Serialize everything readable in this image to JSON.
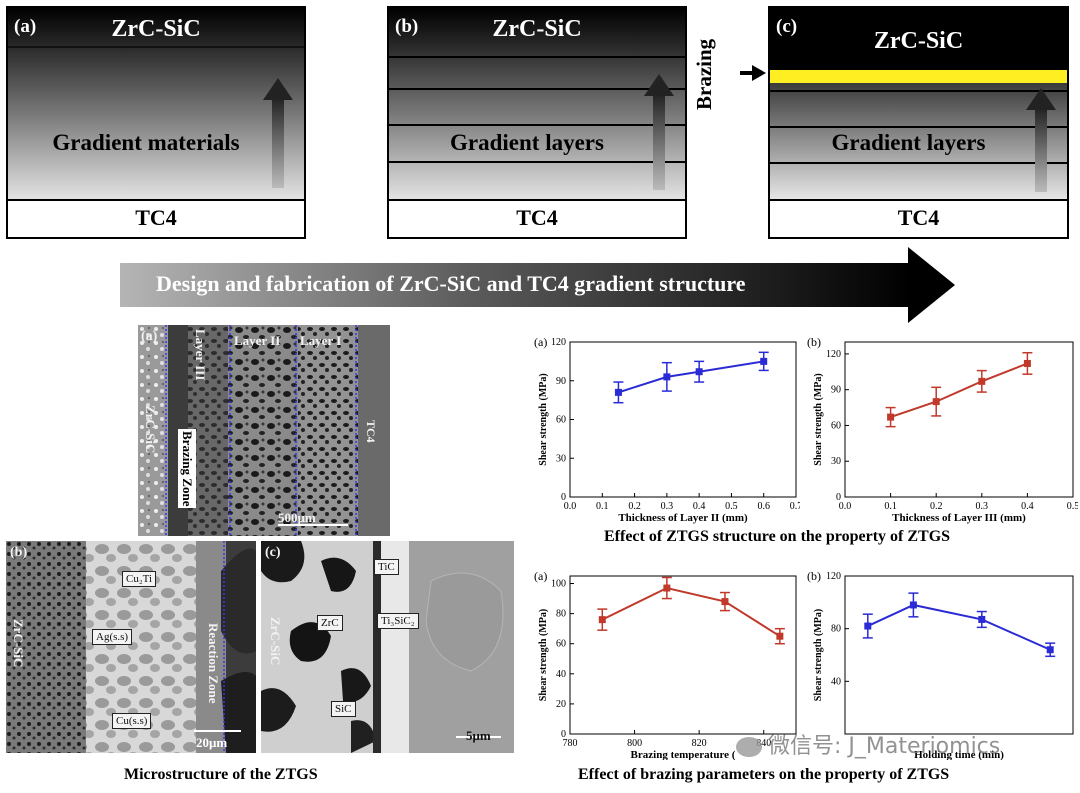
{
  "top": {
    "panels": [
      {
        "label": "(a)",
        "top_text": "ZrC-SiC",
        "middle_text": "Gradient materials",
        "bottom_text": "TC4"
      },
      {
        "label": "(b)",
        "top_text": "ZrC-SiC",
        "middle_text": "Gradient layers",
        "bottom_text": "TC4"
      },
      {
        "label": "(c)",
        "top_text": "ZrC-SiC",
        "middle_text": "Gradient layers",
        "bottom_text": "TC4"
      }
    ],
    "brazing_label": "Brazing",
    "banner_text": "Design and fabrication of ZrC-SiC and TC4 gradient structure"
  },
  "micro": {
    "a": {
      "label": "(a)",
      "layer3": "Layer III",
      "layer2": "Layer II",
      "layer1": "Layer I",
      "zrcsic": "ZrC-SiC",
      "tc4": "TC4",
      "brazing_zone": "Brazing Zone",
      "scale": "500μm"
    },
    "b": {
      "label": "(b)",
      "zrcsic": "ZrC-SiC",
      "cuti": "Cu₂Ti",
      "ag": "Ag(s.s)",
      "cu": "Cu(s.s)",
      "reaction": "Reaction Zone",
      "scale": "20μm"
    },
    "c": {
      "label": "(c)",
      "zrcsic": "ZrC-SiC",
      "tic": "TiC",
      "zrc": "ZrC",
      "ti3sic2": "Ti₃SiC₂",
      "sic": "SiC",
      "scale": "5μm"
    },
    "caption": "Microstructure of the ZTGS"
  },
  "captions": {
    "structure": "Effect of ZTGS structure on the property of ZTGS",
    "brazing": "Effect of brazing parameters on the property of ZTGS"
  },
  "watermark": "微信号: J_Materiomics",
  "colors": {
    "blue": "#2b2bd6",
    "red": "#c0392b",
    "brazing_layer": "#ffee22"
  },
  "chart_data": [
    {
      "type": "line",
      "panel_label": "(a)",
      "xlabel": "Thickness of Layer II (mm)",
      "ylabel": "Shear strength (MPa)",
      "xlim": [
        0.0,
        0.7
      ],
      "ylim": [
        0,
        120
      ],
      "xticks": [
        "0.0",
        "0.1",
        "0.2",
        "0.3",
        "0.4",
        "0.5",
        "0.6",
        "0.7"
      ],
      "yticks": [
        "0",
        "30",
        "60",
        "90",
        "120"
      ],
      "x": [
        0.15,
        0.3,
        0.4,
        0.6
      ],
      "y": [
        81,
        93,
        97,
        105
      ],
      "err": [
        8,
        11,
        8,
        7
      ],
      "color": "#2b2bd6"
    },
    {
      "type": "line",
      "panel_label": "(b)",
      "xlabel": "Thickness of Layer III (mm)",
      "ylabel": "Shear strength (MPa)",
      "xlim": [
        0.0,
        0.5
      ],
      "ylim": [
        0,
        130
      ],
      "xticks": [
        "0.0",
        "0.1",
        "0.2",
        "0.3",
        "0.4",
        "0.5"
      ],
      "yticks": [
        "0",
        "30",
        "60",
        "90",
        "120"
      ],
      "x": [
        0.1,
        0.2,
        0.3,
        0.4
      ],
      "y": [
        67,
        80,
        97,
        112
      ],
      "err": [
        8,
        12,
        9,
        9
      ],
      "color": "#c0392b"
    },
    {
      "type": "line",
      "panel_label": "(a)",
      "xlabel": "Brazing temperature (",
      "ylabel": "Shear strength (MPa)",
      "xlim": [
        780,
        850
      ],
      "ylim": [
        0,
        105
      ],
      "xticks": [
        "780",
        "800",
        "820",
        "840"
      ],
      "yticks": [
        "0",
        "20",
        "40",
        "60",
        "80",
        "100"
      ],
      "x": [
        790,
        810,
        828,
        845
      ],
      "y": [
        76,
        97,
        88,
        65
      ],
      "err": [
        7,
        7,
        6,
        5
      ],
      "color": "#c0392b"
    },
    {
      "type": "line",
      "panel_label": "(b)",
      "xlabel": "Holding time (min)",
      "ylabel": "Shear strength (MPa)",
      "xlim": [
        0,
        50
      ],
      "ylim": [
        0,
        120
      ],
      "xticks": [],
      "yticks": [
        "40",
        "80",
        "120"
      ],
      "x": [
        5,
        15,
        30,
        45
      ],
      "y": [
        82,
        98,
        87,
        64
      ],
      "err": [
        9,
        9,
        6,
        5
      ],
      "color": "#2b2bd6"
    }
  ]
}
